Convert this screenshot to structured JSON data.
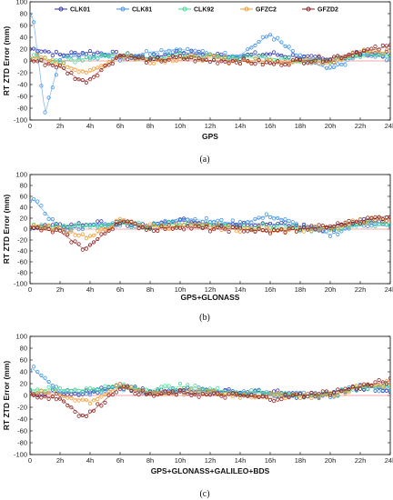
{
  "legend": [
    {
      "name": "CLK01",
      "color": "#2b2fa8"
    },
    {
      "name": "CLK81",
      "color": "#3d8fe0"
    },
    {
      "name": "CLK92",
      "color": "#3fd890"
    },
    {
      "name": "GFZC2",
      "color": "#f29a2e"
    },
    {
      "name": "GFZD2",
      "color": "#8a1a1a"
    }
  ],
  "chart_data": [
    {
      "type": "scatter",
      "caption": "(a)",
      "xlabel": "GPS",
      "ylabel": "RT ZTD Error (mm)",
      "xlim": [
        0,
        24
      ],
      "ylim": [
        -100,
        100
      ],
      "x_ticks": [
        "0",
        "2h",
        "4h",
        "6h",
        "8h",
        "10h",
        "12h",
        "14h",
        "16h",
        "18h",
        "20h",
        "22h",
        "24h"
      ],
      "y_ticks": [
        100,
        80,
        60,
        40,
        20,
        0,
        -20,
        -40,
        -60,
        -80,
        -100
      ],
      "legend_placement": "top-center",
      "series": [
        {
          "name": "CLK01",
          "x": [
            0.5,
            2,
            4,
            6,
            8,
            10,
            12,
            14,
            16,
            18,
            20,
            22,
            24
          ],
          "y": [
            20,
            10,
            15,
            10,
            5,
            15,
            10,
            8,
            12,
            6,
            0,
            15,
            10
          ]
        },
        {
          "name": "CLK81",
          "x": [
            0.2,
            1,
            2,
            4,
            6,
            8,
            10,
            12,
            14,
            16,
            18,
            20,
            22,
            24
          ],
          "y": [
            75,
            -90,
            5,
            10,
            5,
            15,
            20,
            10,
            10,
            45,
            5,
            -15,
            10,
            5
          ]
        },
        {
          "name": "CLK92",
          "x": [
            0.5,
            2,
            4,
            6,
            8,
            10,
            12,
            14,
            16,
            18,
            20,
            22,
            24
          ],
          "y": [
            5,
            0,
            5,
            10,
            5,
            10,
            8,
            5,
            5,
            0,
            0,
            10,
            10
          ]
        },
        {
          "name": "GFZC2",
          "x": [
            0.5,
            2,
            4,
            6,
            8,
            10,
            12,
            14,
            16,
            18,
            20,
            22,
            24
          ],
          "y": [
            5,
            -5,
            -20,
            10,
            0,
            5,
            5,
            0,
            0,
            0,
            0,
            15,
            15
          ]
        },
        {
          "name": "GFZD2",
          "x": [
            0.5,
            2,
            3.5,
            4,
            6,
            8,
            10,
            12,
            14,
            16,
            18,
            20,
            22,
            24
          ],
          "y": [
            0,
            -10,
            -35,
            -30,
            10,
            0,
            5,
            0,
            0,
            -5,
            0,
            5,
            15,
            25
          ]
        }
      ]
    },
    {
      "type": "scatter",
      "caption": "(b)",
      "xlabel": "GPS+GLONASS",
      "ylabel": "RT ZTD Error (mm)",
      "xlim": [
        0,
        24
      ],
      "ylim": [
        -100,
        100
      ],
      "x_ticks": [
        "0",
        "2h",
        "4h",
        "6h",
        "8h",
        "10h",
        "12h",
        "14h",
        "16h",
        "18h",
        "20h",
        "22h",
        "24h"
      ],
      "y_ticks": [
        100,
        80,
        60,
        40,
        20,
        0,
        -20,
        -40,
        -60,
        -80,
        -100
      ],
      "series": [
        {
          "name": "CLK01",
          "x": [
            0.5,
            2,
            4,
            6,
            8,
            10,
            12,
            14,
            16,
            18,
            20,
            22,
            24
          ],
          "y": [
            5,
            5,
            10,
            10,
            5,
            15,
            10,
            10,
            10,
            5,
            0,
            15,
            10
          ]
        },
        {
          "name": "CLK81",
          "x": [
            0.2,
            2,
            4,
            6,
            8,
            10,
            12,
            14,
            16,
            18,
            20,
            22,
            24
          ],
          "y": [
            55,
            0,
            5,
            10,
            5,
            20,
            15,
            10,
            25,
            5,
            -10,
            10,
            5
          ]
        },
        {
          "name": "CLK92",
          "x": [
            0.5,
            2,
            4,
            6,
            8,
            10,
            12,
            14,
            16,
            18,
            20,
            22,
            24
          ],
          "y": [
            5,
            5,
            5,
            10,
            5,
            10,
            8,
            5,
            5,
            0,
            0,
            10,
            10
          ]
        },
        {
          "name": "GFZC2",
          "x": [
            0.5,
            2,
            4,
            6,
            8,
            10,
            12,
            14,
            16,
            18,
            20,
            22,
            24
          ],
          "y": [
            5,
            0,
            -15,
            15,
            5,
            5,
            5,
            0,
            0,
            0,
            0,
            15,
            20
          ]
        },
        {
          "name": "GFZD2",
          "x": [
            0.5,
            2,
            3.5,
            4,
            6,
            8,
            10,
            12,
            14,
            16,
            18,
            20,
            22,
            24
          ],
          "y": [
            0,
            -5,
            -35,
            -30,
            15,
            0,
            5,
            0,
            0,
            -5,
            0,
            5,
            15,
            25
          ]
        }
      ]
    },
    {
      "type": "scatter",
      "caption": "(c)",
      "xlabel": "GPS+GLONASS+GALILEO+BDS",
      "ylabel": "RT ZTD Error (mm)",
      "xlim": [
        0,
        24
      ],
      "ylim": [
        -100,
        100
      ],
      "x_ticks": [
        "0",
        "2h",
        "4h",
        "6h",
        "8h",
        "10h",
        "12h",
        "14h",
        "16h",
        "18h",
        "20h",
        "22h",
        "24h"
      ],
      "y_ticks": [
        100,
        80,
        60,
        40,
        20,
        0,
        -20,
        -40,
        -60,
        -80,
        -100
      ],
      "series": [
        {
          "name": "CLK01",
          "x": [
            0.5,
            2,
            4,
            6,
            8,
            10,
            12,
            14,
            16,
            18,
            20,
            22,
            24
          ],
          "y": [
            5,
            5,
            5,
            15,
            5,
            10,
            8,
            5,
            5,
            0,
            0,
            15,
            10
          ]
        },
        {
          "name": "CLK81",
          "x": [
            0.2,
            2,
            4,
            6,
            8,
            10,
            12,
            14,
            16,
            18,
            20,
            22,
            24
          ],
          "y": [
            45,
            5,
            5,
            15,
            5,
            10,
            8,
            5,
            5,
            0,
            0,
            15,
            10
          ]
        },
        {
          "name": "CLK92",
          "x": [
            0.5,
            2,
            4,
            6,
            8,
            10,
            12,
            14,
            16,
            18,
            20,
            22,
            24
          ],
          "y": [
            10,
            10,
            10,
            15,
            10,
            15,
            10,
            5,
            5,
            0,
            0,
            15,
            15
          ]
        },
        {
          "name": "GFZC2",
          "x": [
            0.5,
            2,
            4,
            6,
            8,
            10,
            12,
            14,
            16,
            18,
            20,
            22,
            24
          ],
          "y": [
            5,
            0,
            -10,
            15,
            5,
            5,
            5,
            0,
            0,
            0,
            0,
            15,
            20
          ]
        },
        {
          "name": "GFZD2",
          "x": [
            0.5,
            2,
            3.5,
            4,
            6,
            8,
            10,
            12,
            14,
            16,
            18,
            20,
            22,
            24
          ],
          "y": [
            0,
            -5,
            -35,
            -30,
            15,
            0,
            5,
            0,
            0,
            -5,
            0,
            5,
            15,
            25
          ]
        }
      ]
    }
  ]
}
